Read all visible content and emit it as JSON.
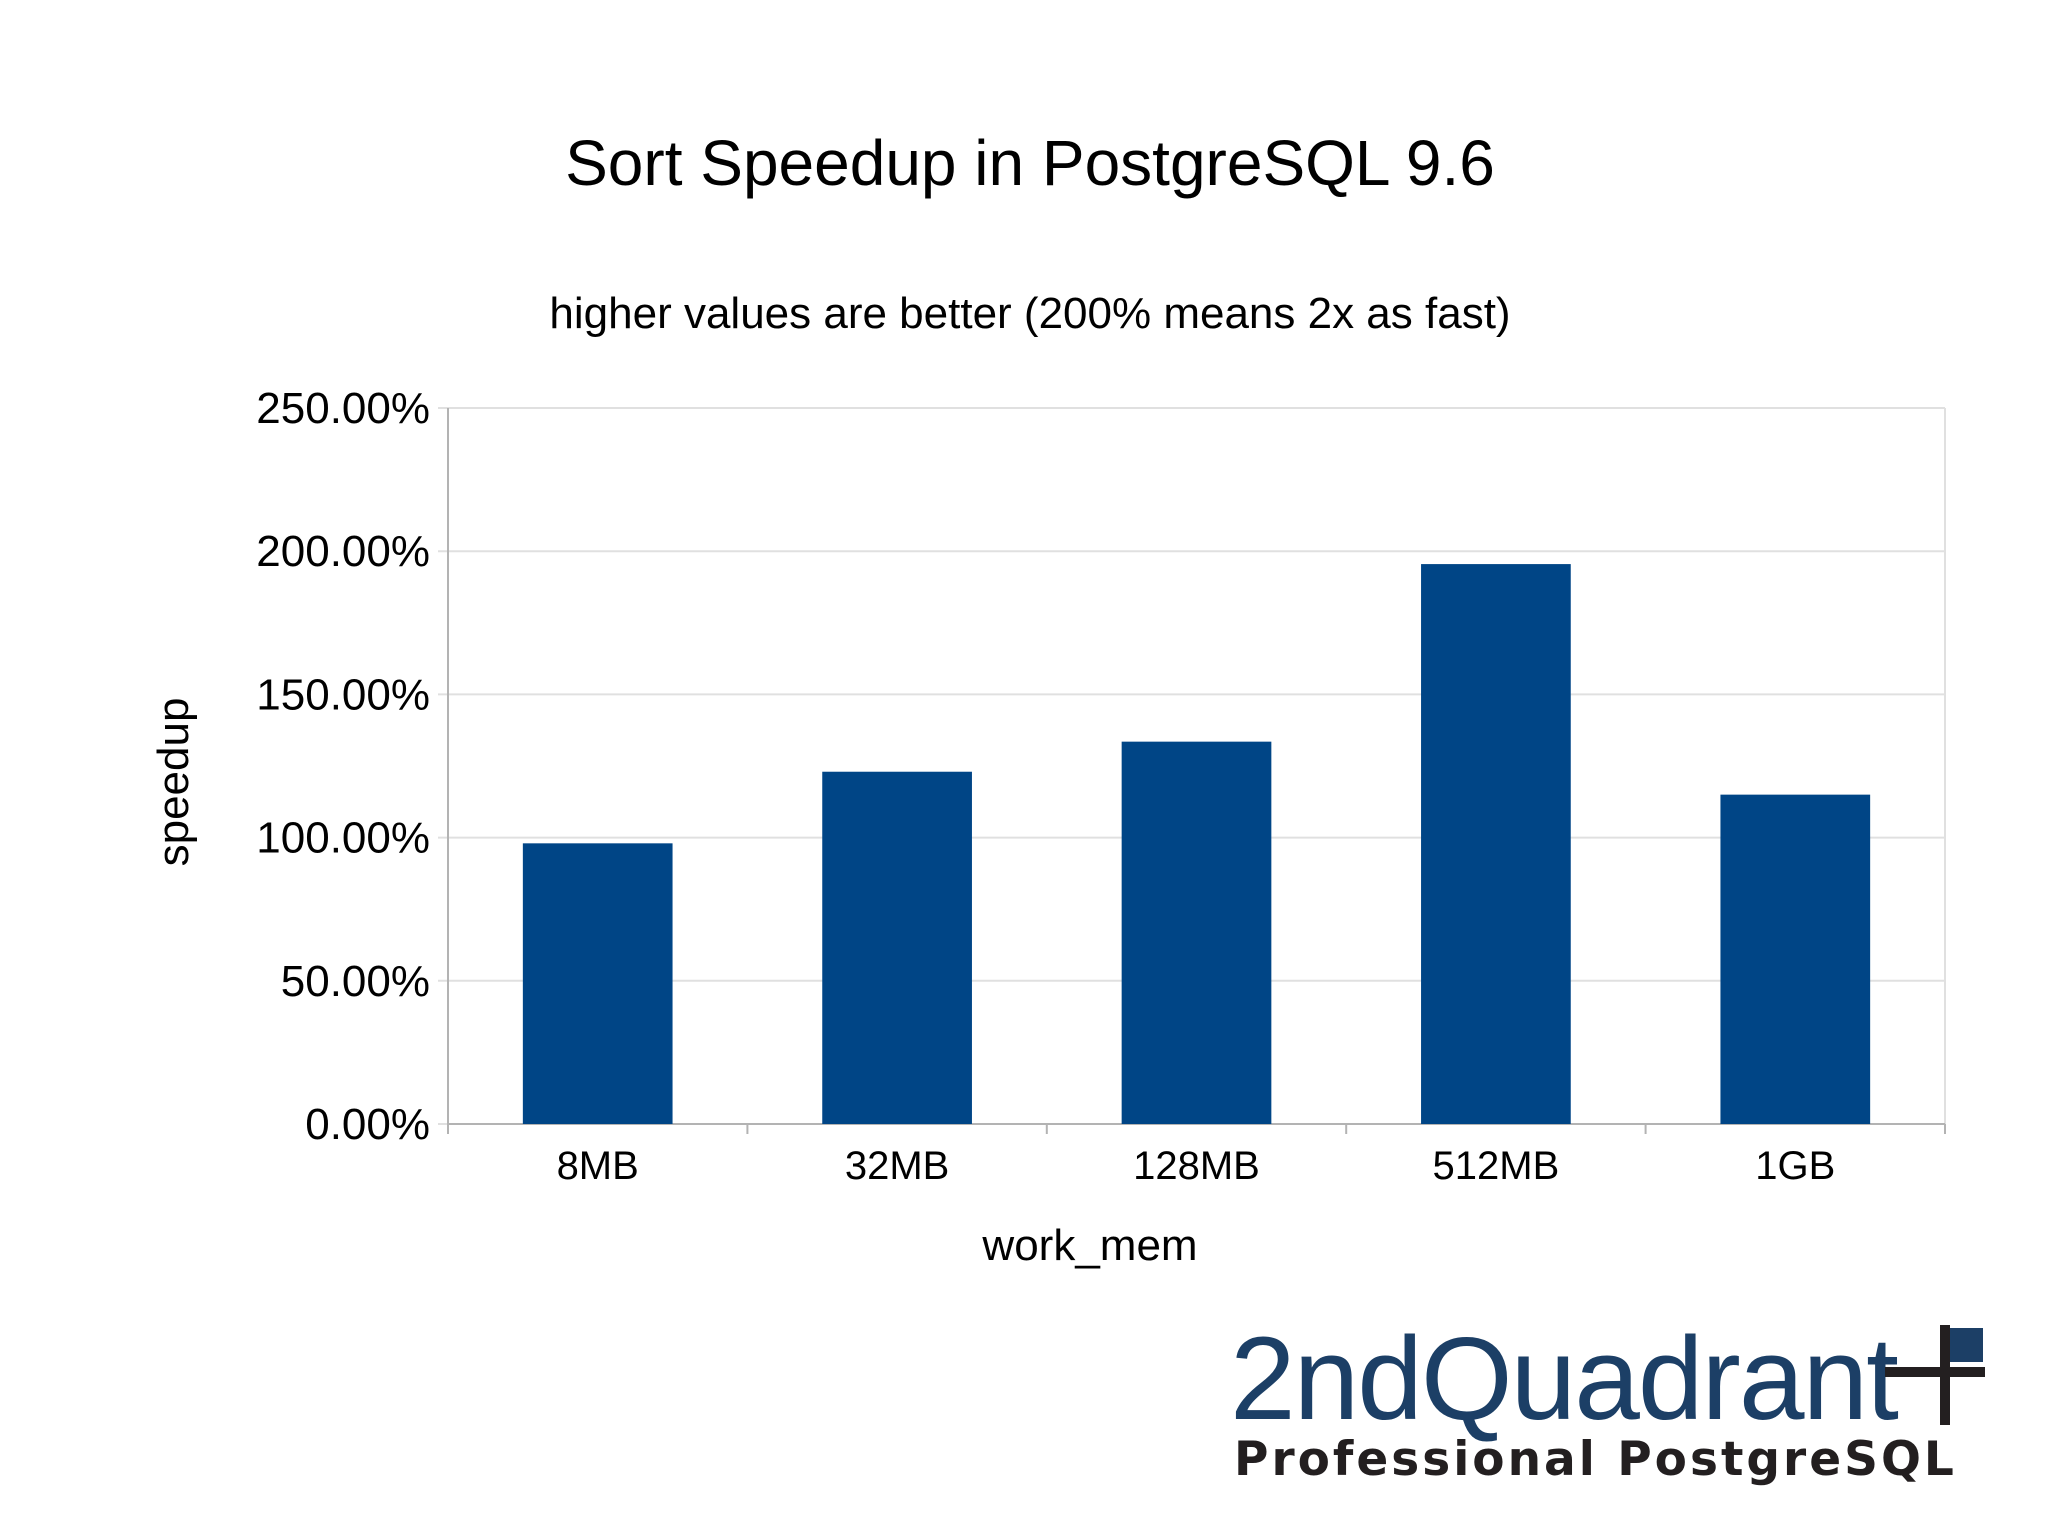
{
  "chart_data": {
    "type": "bar",
    "title": "Sort Speedup in PostgreSQL 9.6",
    "subtitle": "higher values are better (200% means 2x as fast)",
    "xlabel": "work_mem",
    "ylabel": "speedup",
    "categories": [
      "8MB",
      "32MB",
      "128MB",
      "512MB",
      "1GB"
    ],
    "values": [
      98.0,
      123.0,
      133.5,
      195.5,
      115.0
    ],
    "ylim": [
      0,
      250
    ],
    "yticks": [
      0,
      50,
      100,
      150,
      200,
      250
    ],
    "ytick_labels": [
      "0.00%",
      "50.00%",
      "100.00%",
      "150.00%",
      "200.00%",
      "250.00%"
    ],
    "grid": true,
    "legend": "none",
    "bar_color": "#004586",
    "grid_color": "#e0e0e0"
  },
  "logo": {
    "name": "2ndQuadrant",
    "tagline": "Professional PostgreSQL",
    "brand_color": "#1c3f66",
    "mark_color": "#231f20"
  }
}
